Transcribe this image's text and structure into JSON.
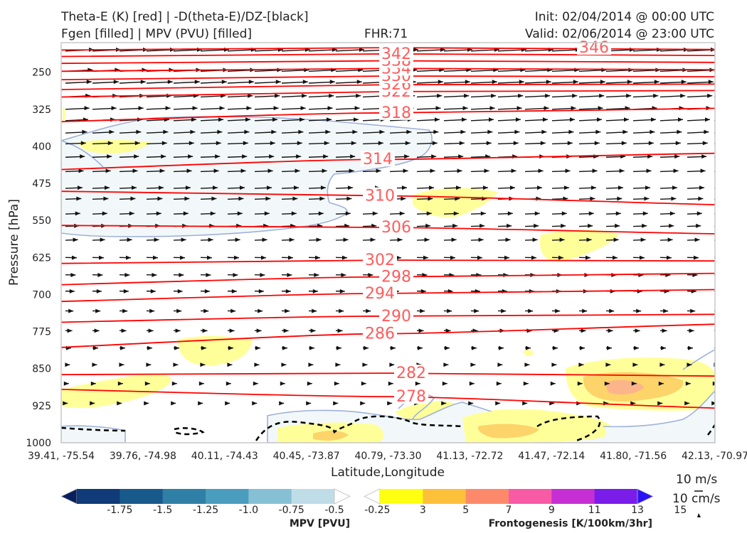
{
  "header": {
    "title_line1": "Theta-E (K) [red] | -D(theta-E)/DZ-[black]",
    "title_line2": "Fgen [filled] | MPV (PVU) [filled]",
    "fhr": "FHR:71",
    "init": "Init: 02/04/2014 @ 00:00 UTC",
    "valid": "Valid: 02/06/2014 @ 23:00 UTC"
  },
  "chart_data": {
    "type": "cross-section",
    "xlabel": "Latitude,Longitude",
    "ylabel": "Pressure [hPa]",
    "x_ticks": [
      "39.41, -75.54",
      "39.76, -74.98",
      "40.11, -74.43",
      "40.45, -73.87",
      "40.79, -73.30",
      "41.13, -72.72",
      "41.47, -72.14",
      "41.80, -71.56",
      "42.13, -70.97"
    ],
    "y_ticks": [
      250,
      325,
      400,
      475,
      550,
      625,
      700,
      775,
      850,
      925,
      1000
    ],
    "ylim": [
      1000,
      190
    ],
    "y_scale": "linear, inverted",
    "theta_e_contours": [
      {
        "value": 278,
        "label": "278",
        "y_left": 892,
        "y_right": 930
      },
      {
        "value": 282,
        "label": "282",
        "y_left": 862,
        "y_right": 865
      },
      {
        "value": 286,
        "label": "286",
        "y_left": 807,
        "y_right": 760
      },
      {
        "value": 290,
        "label": "290",
        "y_left": 756,
        "y_right": 740
      },
      {
        "value": 294,
        "label": "294",
        "y_left": 714,
        "y_right": 690
      },
      {
        "value": 298,
        "label": "298",
        "y_left": 680,
        "y_right": 657
      },
      {
        "value": 302,
        "label": "302",
        "y_left": 637,
        "y_right": 632
      },
      {
        "value": 306,
        "label": "306",
        "y_left": 560,
        "y_right": 577
      },
      {
        "value": 310,
        "label": "310",
        "y_left": 491,
        "y_right": 518
      },
      {
        "value": 314,
        "label": "314",
        "y_left": 447,
        "y_right": 414
      },
      {
        "value": 318,
        "label": "318",
        "y_left": 350,
        "y_right": 323
      },
      {
        "value": 322,
        "label": "322",
        "y_left": 300,
        "y_right": 287
      },
      {
        "value": 326,
        "label": "326",
        "y_left": 285,
        "y_right": 274
      },
      {
        "value": 330,
        "label": "330",
        "y_left": 265,
        "y_right": 259
      },
      {
        "value": 334,
        "label": "334",
        "y_left": 248,
        "y_right": 245
      },
      {
        "value": 338,
        "label": "338",
        "y_left": 232,
        "y_right": 230
      },
      {
        "value": 342,
        "label": "342",
        "y_left": 218,
        "y_right": 216
      },
      {
        "value": 346,
        "label": "346",
        "y_left": 205,
        "y_right": 204
      }
    ],
    "colorbar_mpv": {
      "title": "MPV [PVU]",
      "ticks": [
        "-1.75",
        "-1.5",
        "-1.25",
        "-1.0",
        "-0.75",
        "-0.5",
        "-0.25"
      ],
      "colors": [
        "#08205e",
        "#103a78",
        "#185a8c",
        "#2f7fa6",
        "#4a9dbd",
        "#86c0d4",
        "#bfdde7",
        "#ffffff"
      ]
    },
    "colorbar_fgen": {
      "title": "Frontogenesis [K/100km/3hr]",
      "ticks": [
        "3",
        "5",
        "7",
        "9",
        "11",
        "13",
        "15"
      ],
      "colors": [
        "#ffffff",
        "#ffff12",
        "#fcc03b",
        "#fc8a6a",
        "#f95aa5",
        "#c62fd4",
        "#7a1de8",
        "#2a14f5"
      ]
    },
    "wind_reference": {
      "label_u": "10 m/s",
      "label_w": "10 cm/s"
    },
    "colors": {
      "theta_e": "#ff0000",
      "contour_label": "#ff5c5c",
      "mpv_outline": "#9fb0d8",
      "mpv_fill": "#f2f8f9",
      "wind": "#111111"
    }
  }
}
